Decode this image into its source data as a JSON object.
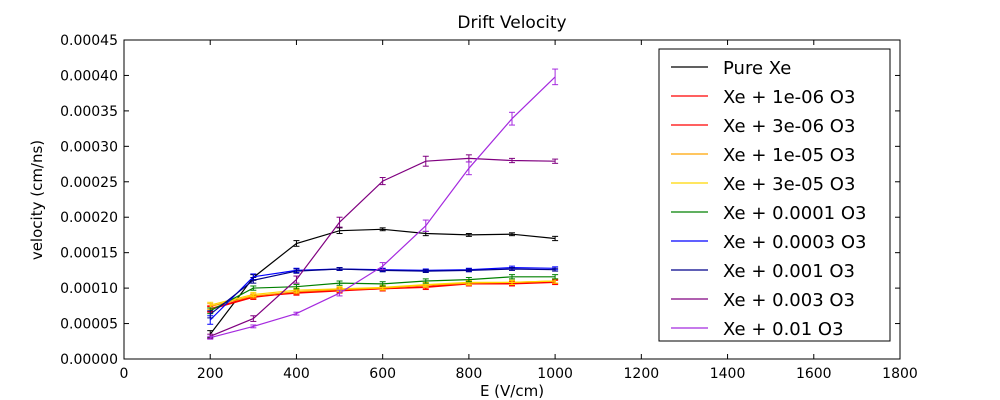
{
  "chart_data": {
    "type": "line",
    "title": "Drift Velocity",
    "xlabel": "E (V/cm)",
    "ylabel": "velocity (cm/ns)",
    "xlim": [
      0,
      1800
    ],
    "ylim": [
      0,
      0.00045
    ],
    "x_ticks": [
      0,
      200,
      400,
      600,
      800,
      1000,
      1200,
      1400,
      1600,
      1800
    ],
    "x_tick_labels": [
      "0",
      "200",
      "400",
      "600",
      "800",
      "1000",
      "1200",
      "1400",
      "1600",
      "1800"
    ],
    "y_ticks": [
      0,
      5e-05,
      0.0001,
      0.00015,
      0.0002,
      0.00025,
      0.0003,
      0.00035,
      0.0004,
      0.00045
    ],
    "y_tick_labels": [
      "0.00000",
      "0.00005",
      "0.00010",
      "0.00015",
      "0.00020",
      "0.00025",
      "0.00030",
      "0.00035",
      "0.00040",
      "0.00045"
    ],
    "grid": false,
    "legend_position": "top-right",
    "error_bars": true,
    "x": [
      200,
      300,
      400,
      500,
      600,
      700,
      800,
      900,
      1000
    ],
    "series": [
      {
        "name": "Pure Xe",
        "color": "#000000",
        "values": [
          3.5e-05,
          0.000115,
          0.000163,
          0.000181,
          0.000183,
          0.000177,
          0.000175,
          0.000176,
          0.00017
        ],
        "errors": [
          5e-06,
          4e-06,
          4e-06,
          4e-06,
          2e-06,
          3e-06,
          2e-06,
          2e-06,
          3e-06
        ]
      },
      {
        "name": "Xe + 1e-06 O3",
        "color": "#ff0000",
        "values": [
          7e-05,
          8.7e-05,
          9.4e-05,
          9.7e-05,
          9.9e-05,
          0.000101,
          0.000106,
          0.000106,
          0.000108
        ],
        "errors": [
          4e-06,
          3e-06,
          3e-06,
          3e-06,
          3e-06,
          3e-06,
          3e-06,
          3e-06,
          3e-06
        ]
      },
      {
        "name": "Xe + 3e-06 O3",
        "color": "#ff0000",
        "values": [
          7.1e-05,
          8.8e-05,
          9.3e-05,
          9.6e-05,
          9.9e-05,
          0.000102,
          0.000107,
          0.000107,
          0.000109
        ],
        "errors": [
          4e-06,
          3e-06,
          3e-06,
          3e-06,
          3e-06,
          3e-06,
          3e-06,
          3e-06,
          3e-06
        ]
      },
      {
        "name": "Xe + 1e-05 O3",
        "color": "#ffa500",
        "values": [
          7.4e-05,
          8.9e-05,
          9.5e-05,
          9.8e-05,
          0.0001,
          0.000104,
          0.000107,
          0.000108,
          0.00011
        ],
        "errors": [
          4e-06,
          3e-06,
          3e-06,
          3e-06,
          3e-06,
          3e-06,
          3e-06,
          3e-06,
          3e-06
        ]
      },
      {
        "name": "Xe + 3e-05 O3",
        "color": "#ffd700",
        "values": [
          7.6e-05,
          9.1e-05,
          9.7e-05,
          9.9e-05,
          0.000101,
          0.000105,
          0.000108,
          0.000108,
          0.00011
        ],
        "errors": [
          4e-06,
          3e-06,
          3e-06,
          3e-06,
          3e-06,
          3e-06,
          3e-06,
          3e-06,
          3e-06
        ]
      },
      {
        "name": "Xe + 0.0001 O3",
        "color": "#008000",
        "values": [
          6.8e-05,
          0.0001,
          0.000102,
          0.000107,
          0.000106,
          0.00011,
          0.000112,
          0.000116,
          0.000116
        ],
        "errors": [
          4e-06,
          3e-06,
          3e-06,
          3e-06,
          3e-06,
          3e-06,
          3e-06,
          3e-06,
          3e-06
        ]
      },
      {
        "name": "Xe + 0.0003 O3",
        "color": "#0000ff",
        "values": [
          5.5e-05,
          0.000116,
          0.000125,
          0.000127,
          0.000126,
          0.000125,
          0.000126,
          0.000129,
          0.000128
        ],
        "errors": [
          6e-06,
          4e-06,
          3e-06,
          2e-06,
          2e-06,
          2e-06,
          2e-06,
          2e-06,
          2e-06
        ]
      },
      {
        "name": "Xe + 0.001 O3",
        "color": "#00008b",
        "values": [
          6.3e-05,
          0.000111,
          0.000124,
          0.000127,
          0.000125,
          0.000124,
          0.000125,
          0.000127,
          0.000126
        ],
        "errors": [
          5e-06,
          4e-06,
          3e-06,
          2e-06,
          2e-06,
          2e-06,
          2e-06,
          2e-06,
          2e-06
        ]
      },
      {
        "name": "Xe + 0.003 O3",
        "color": "#800080",
        "values": [
          3.2e-05,
          5.7e-05,
          0.000112,
          0.000193,
          0.000251,
          0.000279,
          0.000283,
          0.00028,
          0.000279
        ],
        "errors": [
          3e-06,
          4e-06,
          5e-06,
          7e-06,
          5e-06,
          7e-06,
          5e-06,
          3e-06,
          3e-06
        ]
      },
      {
        "name": "Xe + 0.01 O3",
        "color": "#a52adf",
        "values": [
          3e-05,
          4.6e-05,
          6.4e-05,
          9.3e-05,
          0.000131,
          0.000188,
          0.000269,
          0.000339,
          0.000398
        ],
        "errors": [
          2e-06,
          2e-06,
          2e-06,
          4e-06,
          5e-06,
          8e-06,
          9e-06,
          9e-06,
          1.1e-05
        ]
      }
    ]
  }
}
